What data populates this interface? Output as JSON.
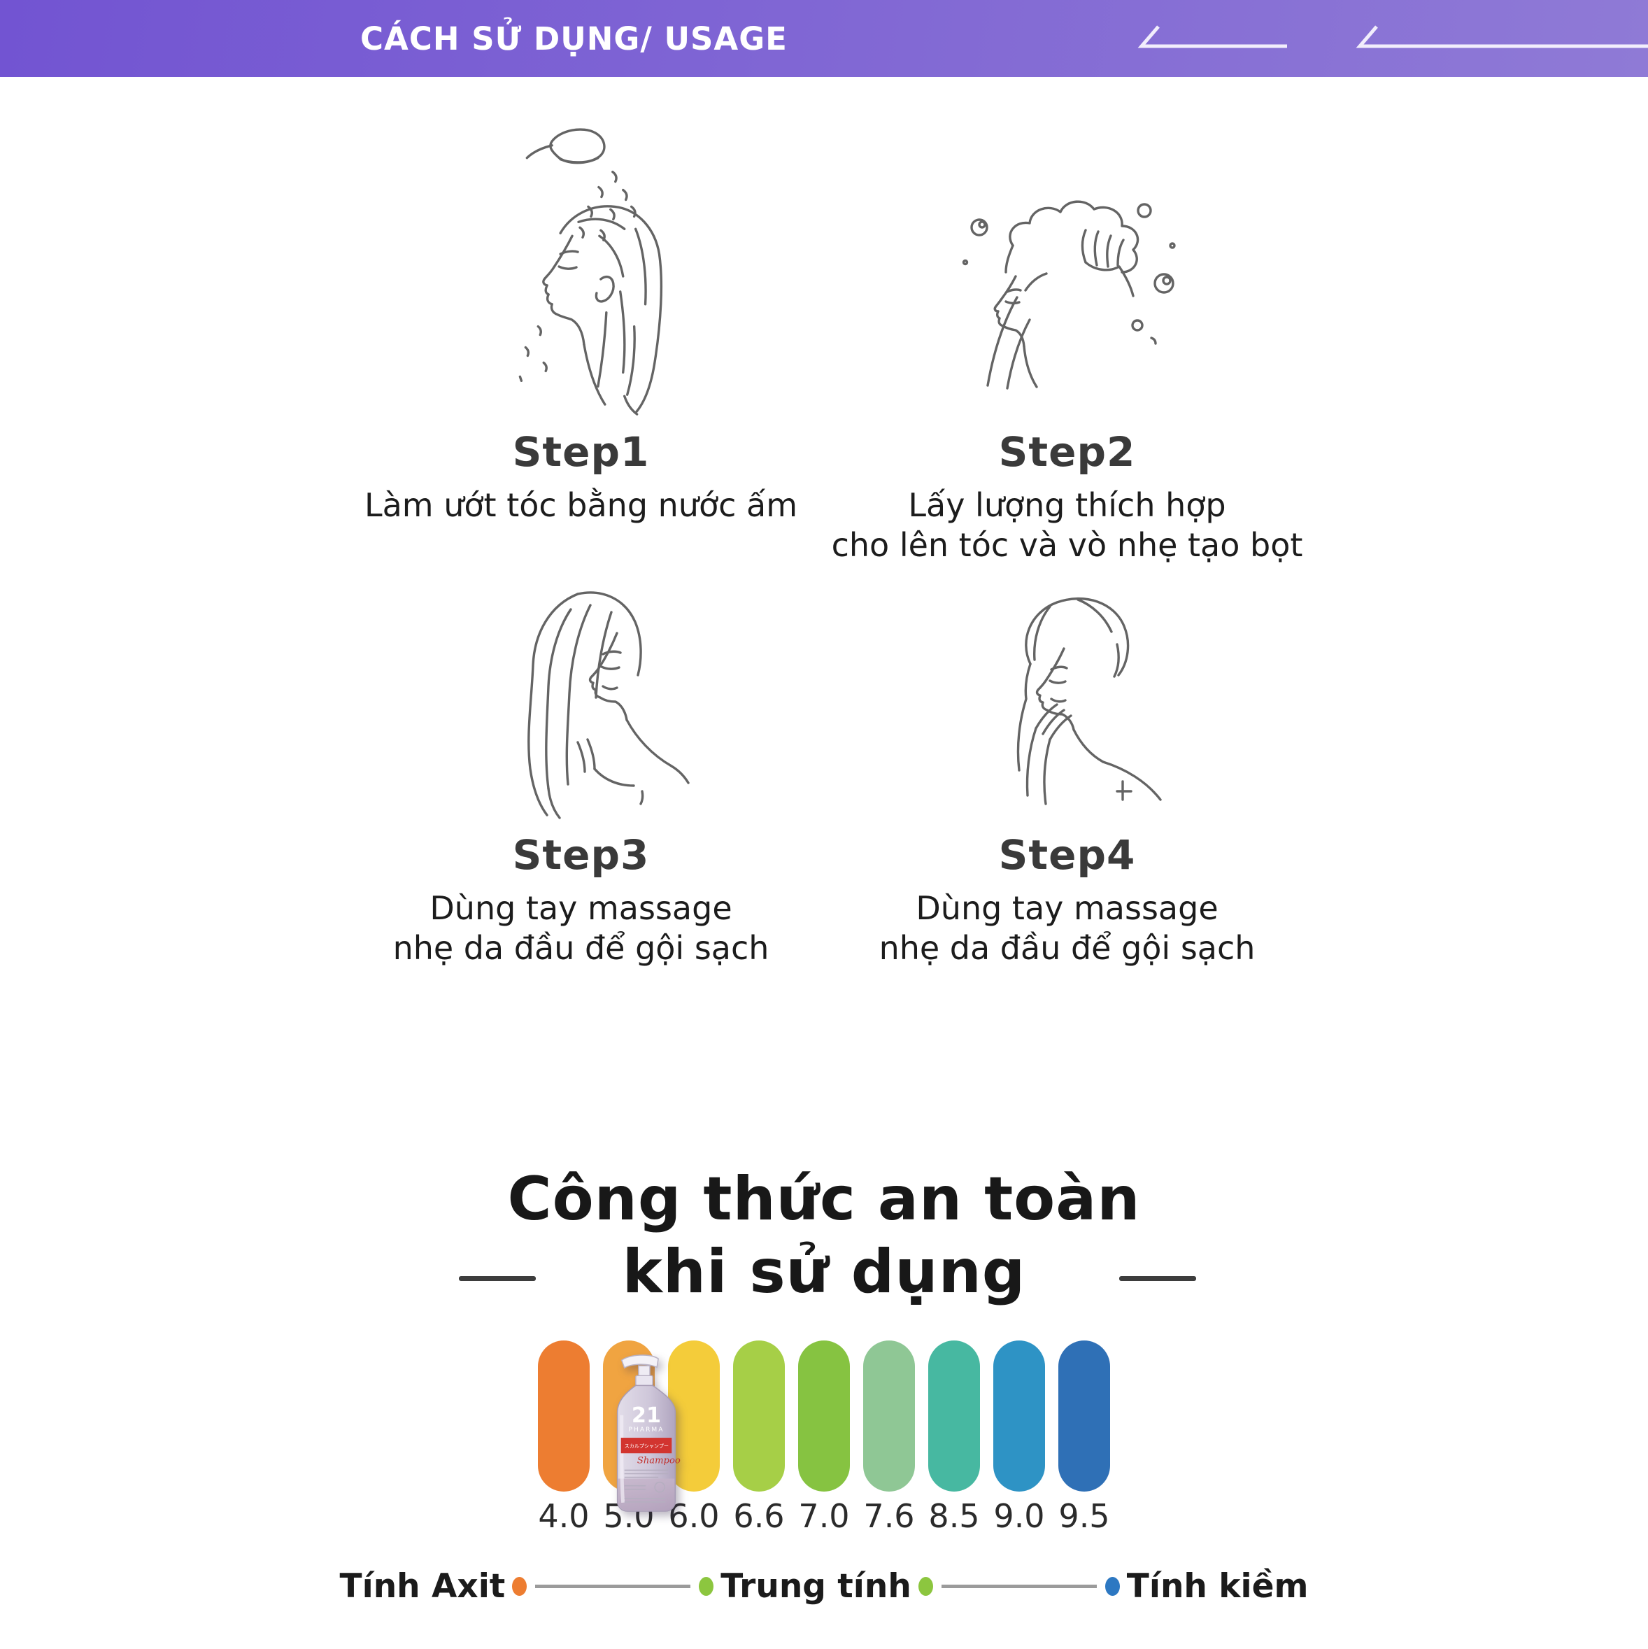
{
  "header": {
    "title": "CÁCH SỬ DỤNG/ USAGE",
    "bg_from": "#7254d2",
    "bg_to": "#8f7ad6",
    "line_color": "#f2eefc"
  },
  "steps": [
    {
      "title": "Step1",
      "caption_lines": [
        "Làm ướt tóc bằng nước ấm"
      ]
    },
    {
      "title": "Step2",
      "caption_lines": [
        "Lấy lượng thích hợp",
        "cho lên tóc và vò nhẹ tạo bọt"
      ]
    },
    {
      "title": "Step3",
      "caption_lines": [
        "Dùng tay massage",
        "nhẹ da đầu để gội sạch"
      ]
    },
    {
      "title": "Step4",
      "caption_lines": [
        "Dùng tay massage",
        "nhẹ da đầu để gội sạch"
      ]
    }
  ],
  "chart_data": {
    "type": "scale",
    "title_lines": [
      "Công thức an toàn",
      "khi sử dụng"
    ],
    "categories": [
      "4.0",
      "5.0",
      "6.0",
      "6.6",
      "7.0",
      "7.6",
      "8.5",
      "9.0",
      "9.5"
    ],
    "colors": [
      "#ed7d31",
      "#f0a441",
      "#f4cc3a",
      "#a6cf47",
      "#86c341",
      "#8fc795",
      "#47b8a1",
      "#2e93c5",
      "#2f70b6"
    ],
    "product_at": "5.0",
    "axis": {
      "left_label": "Tính Axit",
      "mid_label": "Trung tính",
      "right_label": "Tính kiềm",
      "dot_colors": [
        "#ed7d31",
        "#8cc63f",
        "#8cc63f",
        "#2d78c2"
      ],
      "line_color": "#9b9b9b"
    }
  },
  "bottle": {
    "number": "21",
    "brand": "PHARMA",
    "label_jp": "スカルプシャンプー",
    "label_script": "Shampoo"
  }
}
